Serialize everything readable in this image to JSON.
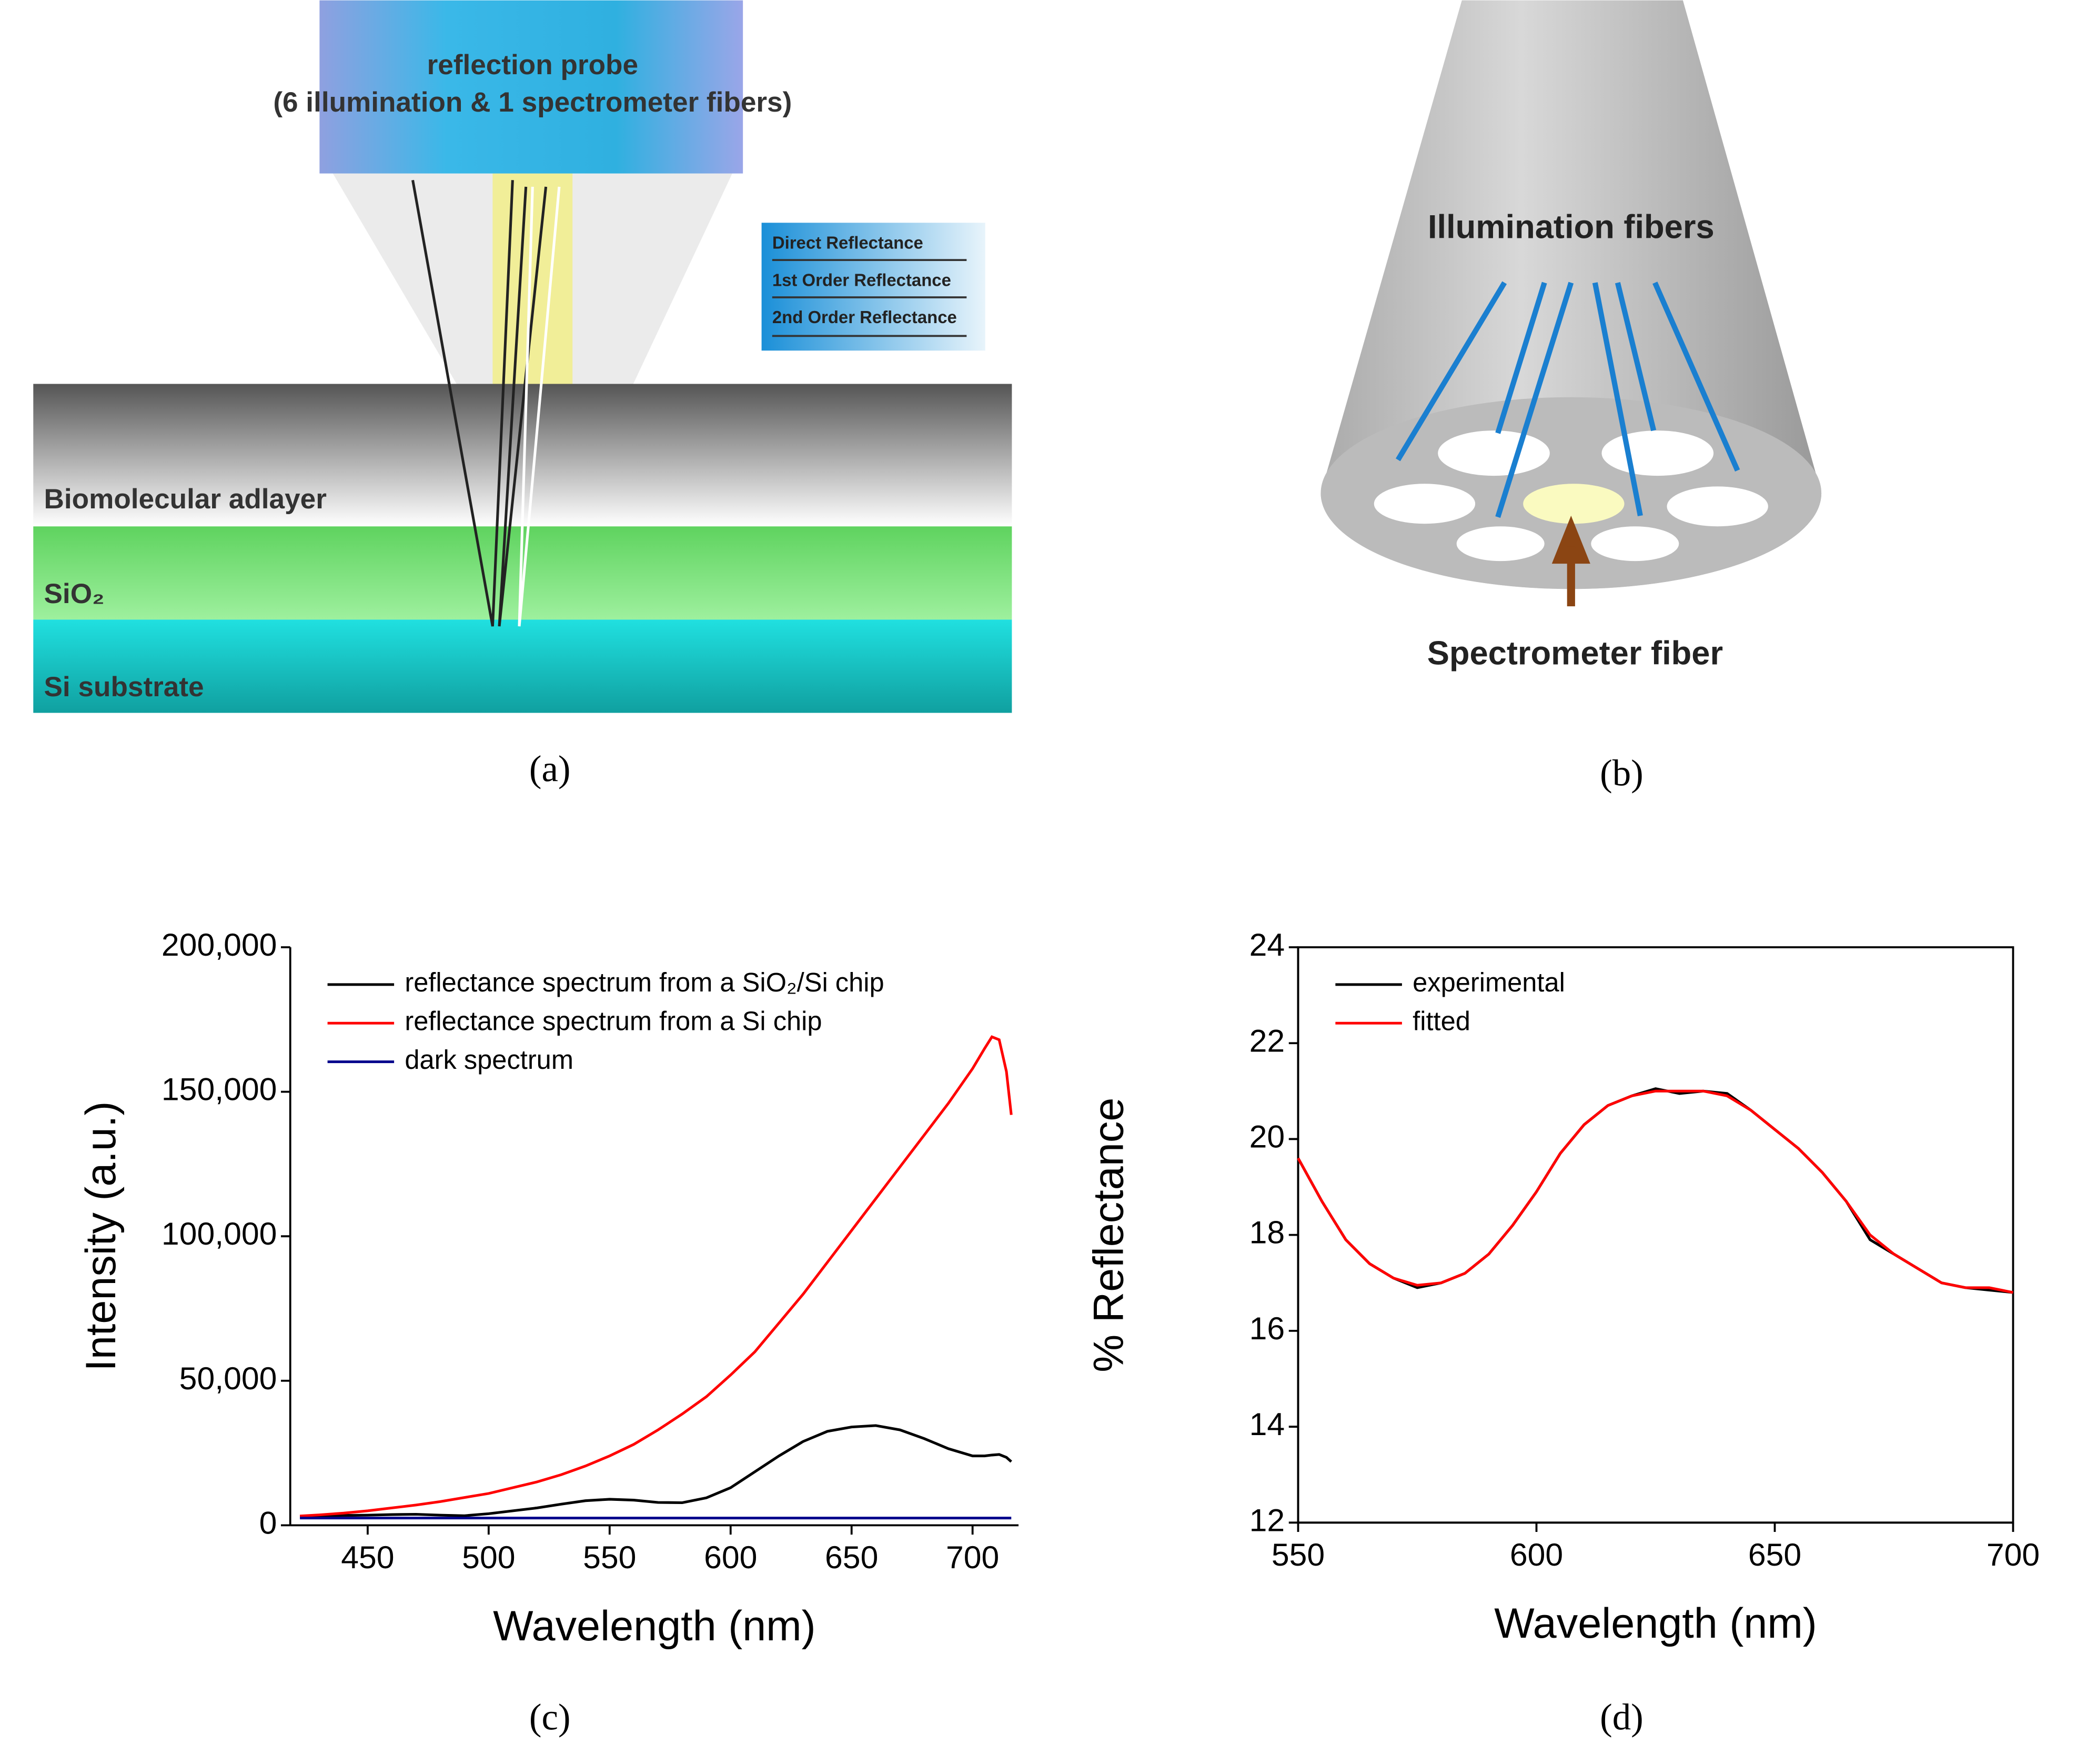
{
  "figure": {
    "panel_labels": [
      "(a)",
      "(b)",
      "(c)",
      "(d)"
    ]
  },
  "diagram_a": {
    "probe_title": "reflection probe",
    "probe_subtitle": "(6 illumination & 1 spectrometer fibers)",
    "legend": [
      "Direct Reflectance",
      "1st Order Reflectance",
      "2nd Order Reflectance"
    ],
    "layers": [
      "Biomolecular adlayer",
      "SiO₂",
      "Si substrate"
    ]
  },
  "diagram_b": {
    "top_label": "Illumination fibers",
    "bottom_label": "Spectrometer fiber"
  },
  "chart_data": [
    {
      "type": "line",
      "xlabel": "Wavelength (nm)",
      "ylabel": "Intensity (a.u.)",
      "x": [
        422,
        430,
        440,
        450,
        460,
        470,
        480,
        490,
        500,
        510,
        520,
        530,
        540,
        550,
        560,
        570,
        580,
        590,
        600,
        610,
        620,
        630,
        640,
        650,
        660,
        670,
        680,
        690,
        700,
        705,
        708,
        711,
        714,
        716
      ],
      "xlim": [
        418,
        719
      ],
      "xticks": [
        450,
        500,
        550,
        600,
        650,
        700
      ],
      "ylim": [
        0,
        200000
      ],
      "yticks": [
        0,
        {
          "value": 50000,
          "label": "50,000"
        },
        {
          "value": 100000,
          "label": "100,000"
        },
        {
          "value": 150000,
          "label": "150,000"
        },
        {
          "value": 200000,
          "label": "200,000"
        }
      ],
      "legend": "upper left",
      "series": [
        {
          "name": "reflectance spectrum from a SiO₂/Si chip",
          "color": "#000000",
          "values": [
            3000,
            3200,
            3400,
            3500,
            3700,
            3800,
            3500,
            3300,
            4000,
            5000,
            6000,
            7300,
            8500,
            9000,
            8700,
            7900,
            7800,
            9500,
            13000,
            18500,
            24000,
            29000,
            32500,
            34000,
            34500,
            33000,
            30000,
            26500,
            24000,
            24000,
            24300,
            24500,
            23500,
            22000
          ]
        },
        {
          "name": "reflectance spectrum from a Si chip",
          "color": "#ff0000",
          "values": [
            3200,
            3600,
            4200,
            5000,
            6000,
            7000,
            8200,
            9600,
            11000,
            13000,
            15000,
            17500,
            20500,
            24000,
            28000,
            33000,
            38500,
            44500,
            52000,
            60000,
            70000,
            80000,
            91000,
            102000,
            113000,
            124000,
            135000,
            146000,
            158000,
            165000,
            169000,
            168000,
            157000,
            142000
          ]
        },
        {
          "name": "dark spectrum",
          "color": "#00008b",
          "values": [
            2500,
            2500,
            2500,
            2500,
            2500,
            2500,
            2500,
            2500,
            2500,
            2500,
            2500,
            2500,
            2500,
            2500,
            2500,
            2500,
            2500,
            2500,
            2500,
            2500,
            2500,
            2500,
            2500,
            2500,
            2500,
            2500,
            2500,
            2500,
            2500,
            2500,
            2500,
            2500,
            2500,
            2500
          ]
        }
      ]
    },
    {
      "type": "line",
      "xlabel": "Wavelength (nm)",
      "ylabel": "% Reflectance",
      "x": [
        550,
        555,
        560,
        565,
        570,
        575,
        580,
        585,
        590,
        595,
        600,
        605,
        610,
        615,
        620,
        625,
        630,
        635,
        640,
        645,
        650,
        655,
        660,
        665,
        670,
        675,
        680,
        685,
        690,
        695,
        700
      ],
      "xlim": [
        550,
        700
      ],
      "xticks": [
        550,
        600,
        650,
        700
      ],
      "ylim": [
        12,
        24
      ],
      "yticks": [
        12,
        14,
        16,
        18,
        20,
        22,
        24
      ],
      "legend": "upper left",
      "series": [
        {
          "name": "experimental",
          "color": "#000000",
          "values": [
            19.6,
            18.7,
            17.9,
            17.4,
            17.1,
            16.9,
            17.0,
            17.2,
            17.6,
            18.2,
            18.9,
            19.7,
            20.3,
            20.7,
            20.9,
            21.05,
            20.95,
            21.0,
            20.95,
            20.6,
            20.2,
            19.8,
            19.3,
            18.7,
            17.9,
            17.6,
            17.3,
            17.0,
            16.9,
            16.85,
            16.8
          ]
        },
        {
          "name": "fitted",
          "color": "#ff0000",
          "values": [
            19.6,
            18.7,
            17.9,
            17.4,
            17.1,
            16.95,
            17.0,
            17.2,
            17.6,
            18.2,
            18.9,
            19.7,
            20.3,
            20.7,
            20.9,
            21.0,
            21.0,
            21.0,
            20.9,
            20.6,
            20.2,
            19.8,
            19.3,
            18.7,
            18.0,
            17.6,
            17.3,
            17.0,
            16.9,
            16.9,
            16.8
          ]
        }
      ]
    }
  ]
}
